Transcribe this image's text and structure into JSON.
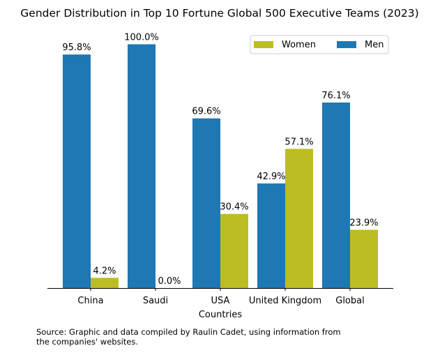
{
  "chart_data": {
    "type": "bar",
    "title": "Gender Distribution in Top 10 Fortune Global 500 Executive Teams (2023)",
    "xlabel": "Countries",
    "ylabel": "",
    "categories": [
      "China",
      "Saudi",
      "USA",
      "United Kingdom",
      "Global"
    ],
    "series": [
      {
        "name": "Men",
        "values": [
          95.8,
          100.0,
          69.6,
          42.9,
          76.1
        ],
        "color": "#1f77b4",
        "labels": [
          "95.8%",
          "100.0%",
          "69.6%",
          "42.9%",
          "76.1%"
        ]
      },
      {
        "name": "Women",
        "values": [
          4.2,
          0.0,
          30.4,
          57.1,
          23.9
        ],
        "color": "#bcbd22",
        "labels": [
          "4.2%",
          "0.0%",
          "30.4%",
          "57.1%",
          "23.9%"
        ]
      }
    ],
    "legend_order": [
      "Women",
      "Men"
    ],
    "legend_position": "top-right",
    "ylim": [
      0,
      105
    ],
    "grid": false,
    "y_axis_visible": false
  },
  "source": "Source: Graphic and data compiled by Raulin Cadet, using information from\nthe companies' websites."
}
